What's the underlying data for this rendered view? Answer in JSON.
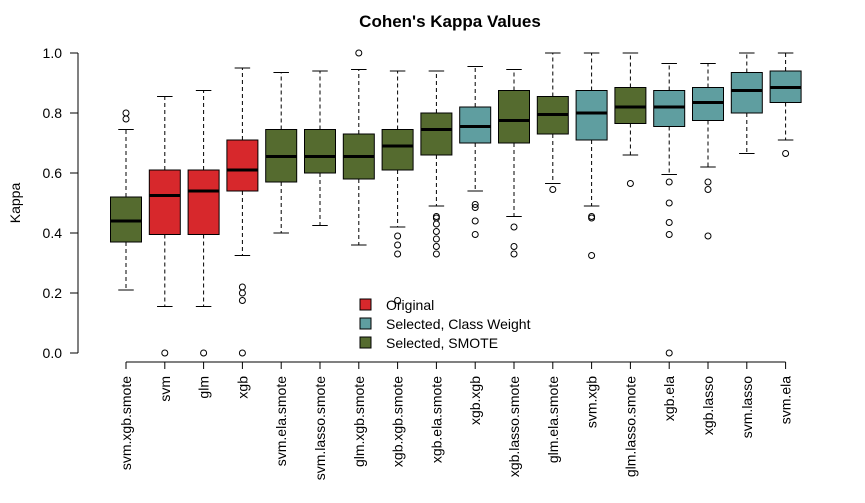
{
  "chart_data": {
    "type": "boxplot",
    "title": "Cohen's Kappa Values",
    "ylabel": "Kappa",
    "xlabel": "",
    "ylim": [
      0.0,
      1.0
    ],
    "yticks": [
      "0.0",
      "0.2",
      "0.4",
      "0.6",
      "0.8",
      "1.0"
    ],
    "grid": false,
    "legend_position": "bottom-center",
    "legend": [
      {
        "label": "Original",
        "color": "#D7282C"
      },
      {
        "label": "Selected, Class Weight",
        "color": "#5F9EA0"
      },
      {
        "label": "Selected, SMOTE",
        "color": "#556B2F"
      }
    ],
    "boxes": [
      {
        "label": "svm.xgb.smote",
        "group": "Selected, SMOTE",
        "whisker_low": 0.21,
        "q1": 0.37,
        "median": 0.44,
        "q3": 0.52,
        "whisker_high": 0.745,
        "outliers": [
          0.78,
          0.8
        ]
      },
      {
        "label": "svm",
        "group": "Original",
        "whisker_low": 0.155,
        "q1": 0.395,
        "median": 0.525,
        "q3": 0.61,
        "whisker_high": 0.855,
        "outliers": [
          0.0
        ]
      },
      {
        "label": "glm",
        "group": "Original",
        "whisker_low": 0.155,
        "q1": 0.395,
        "median": 0.54,
        "q3": 0.61,
        "whisker_high": 0.875,
        "outliers": [
          0.0
        ]
      },
      {
        "label": "xgb",
        "group": "Original",
        "whisker_low": 0.325,
        "q1": 0.54,
        "median": 0.61,
        "q3": 0.71,
        "whisker_high": 0.95,
        "outliers": [
          0.0,
          0.175,
          0.2,
          0.22
        ]
      },
      {
        "label": "svm.ela.smote",
        "group": "Selected, SMOTE",
        "whisker_low": 0.4,
        "q1": 0.57,
        "median": 0.655,
        "q3": 0.745,
        "whisker_high": 0.935,
        "outliers": []
      },
      {
        "label": "svm.lasso.smote",
        "group": "Selected, SMOTE",
        "whisker_low": 0.425,
        "q1": 0.6,
        "median": 0.655,
        "q3": 0.745,
        "whisker_high": 0.94,
        "outliers": []
      },
      {
        "label": "glm.xgb.smote",
        "group": "Selected, SMOTE",
        "whisker_low": 0.36,
        "q1": 0.58,
        "median": 0.655,
        "q3": 0.73,
        "whisker_high": 0.945,
        "outliers": [
          1.0
        ]
      },
      {
        "label": "xgb.xgb.smote",
        "group": "Selected, SMOTE",
        "whisker_low": 0.42,
        "q1": 0.61,
        "median": 0.69,
        "q3": 0.745,
        "whisker_high": 0.94,
        "outliers": [
          0.175,
          0.33,
          0.36,
          0.39
        ]
      },
      {
        "label": "xgb.ela.smote",
        "group": "Selected, SMOTE",
        "whisker_low": 0.49,
        "q1": 0.66,
        "median": 0.745,
        "q3": 0.8,
        "whisker_high": 0.94,
        "outliers": [
          0.33,
          0.355,
          0.38,
          0.405,
          0.43,
          0.45,
          0.455
        ]
      },
      {
        "label": "xgb.xgb",
        "group": "Selected, Class Weight",
        "whisker_low": 0.54,
        "q1": 0.7,
        "median": 0.755,
        "q3": 0.82,
        "whisker_high": 0.955,
        "outliers": [
          0.395,
          0.44,
          0.485,
          0.495
        ]
      },
      {
        "label": "xgb.lasso.smote",
        "group": "Selected, SMOTE",
        "whisker_low": 0.455,
        "q1": 0.7,
        "median": 0.775,
        "q3": 0.875,
        "whisker_high": 0.945,
        "outliers": [
          0.33,
          0.355,
          0.42
        ]
      },
      {
        "label": "glm.ela.smote",
        "group": "Selected, SMOTE",
        "whisker_low": 0.565,
        "q1": 0.73,
        "median": 0.795,
        "q3": 0.855,
        "whisker_high": 1.0,
        "outliers": [
          0.545
        ]
      },
      {
        "label": "svm.xgb",
        "group": "Selected, Class Weight",
        "whisker_low": 0.49,
        "q1": 0.71,
        "median": 0.8,
        "q3": 0.875,
        "whisker_high": 1.0,
        "outliers": [
          0.325,
          0.45,
          0.455
        ]
      },
      {
        "label": "glm.lasso.smote",
        "group": "Selected, SMOTE",
        "whisker_low": 0.66,
        "q1": 0.765,
        "median": 0.82,
        "q3": 0.885,
        "whisker_high": 1.0,
        "outliers": [
          0.565
        ]
      },
      {
        "label": "xgb.ela",
        "group": "Selected, Class Weight",
        "whisker_low": 0.595,
        "q1": 0.755,
        "median": 0.82,
        "q3": 0.875,
        "whisker_high": 0.965,
        "outliers": [
          0.0,
          0.395,
          0.435,
          0.5,
          0.57
        ]
      },
      {
        "label": "xgb.lasso",
        "group": "Selected, Class Weight",
        "whisker_low": 0.62,
        "q1": 0.775,
        "median": 0.835,
        "q3": 0.885,
        "whisker_high": 0.965,
        "outliers": [
          0.39,
          0.545,
          0.57
        ]
      },
      {
        "label": "svm.lasso",
        "group": "Selected, Class Weight",
        "whisker_low": 0.665,
        "q1": 0.8,
        "median": 0.875,
        "q3": 0.935,
        "whisker_high": 1.0,
        "outliers": []
      },
      {
        "label": "svm.ela",
        "group": "Selected, Class Weight",
        "whisker_low": 0.71,
        "q1": 0.835,
        "median": 0.885,
        "q3": 0.94,
        "whisker_high": 1.0,
        "outliers": [
          0.665
        ]
      }
    ]
  }
}
